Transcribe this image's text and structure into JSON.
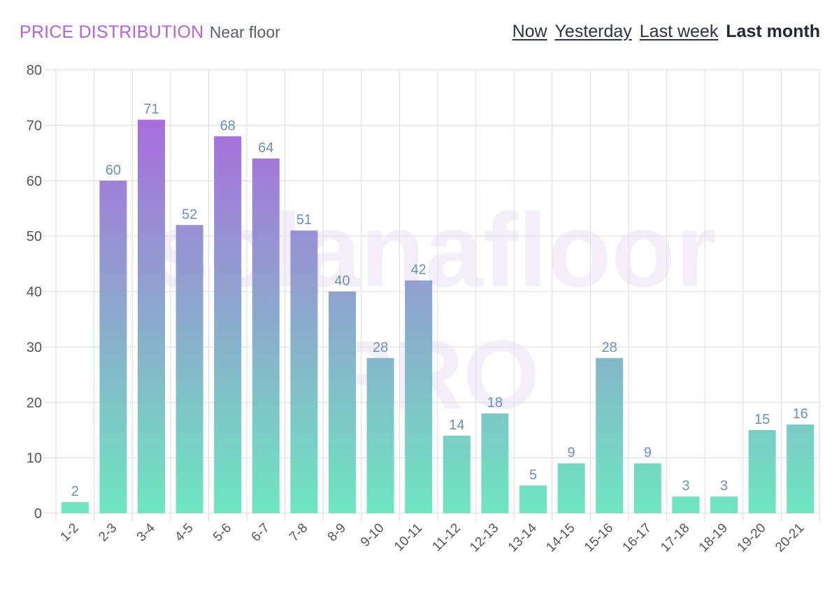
{
  "header": {
    "title": "PRICE DISTRIBUTION",
    "subtitle": "Near floor",
    "ranges": [
      {
        "label": "Now",
        "active": false
      },
      {
        "label": "Yesterday",
        "active": false
      },
      {
        "label": "Last week",
        "active": false
      },
      {
        "label": "Last month",
        "active": true
      }
    ]
  },
  "watermark": {
    "line1": "solanafloor",
    "line2": "PRO"
  },
  "colors": {
    "bar_top": "#b05ee0",
    "bar_bottom": "#6ee6bf",
    "label": "#6b8fc2",
    "grid": "#e2e2e2",
    "tick": "#555555",
    "title": "#b85fe0"
  },
  "chart_data": {
    "type": "bar",
    "categories": [
      "1-2",
      "2-3",
      "3-4",
      "4-5",
      "5-6",
      "6-7",
      "7-8",
      "8-9",
      "9-10",
      "10-11",
      "11-12",
      "12-13",
      "13-14",
      "14-15",
      "15-16",
      "16-17",
      "17-18",
      "18-19",
      "19-20",
      "20-21"
    ],
    "values": [
      2,
      60,
      71,
      52,
      68,
      64,
      51,
      40,
      28,
      42,
      14,
      18,
      5,
      9,
      28,
      9,
      3,
      3,
      15,
      16
    ],
    "ylim": [
      0,
      80
    ],
    "yticks": [
      0,
      10,
      20,
      30,
      40,
      50,
      60,
      70,
      80
    ],
    "grid": true,
    "data_labels": true,
    "legend": "none"
  }
}
